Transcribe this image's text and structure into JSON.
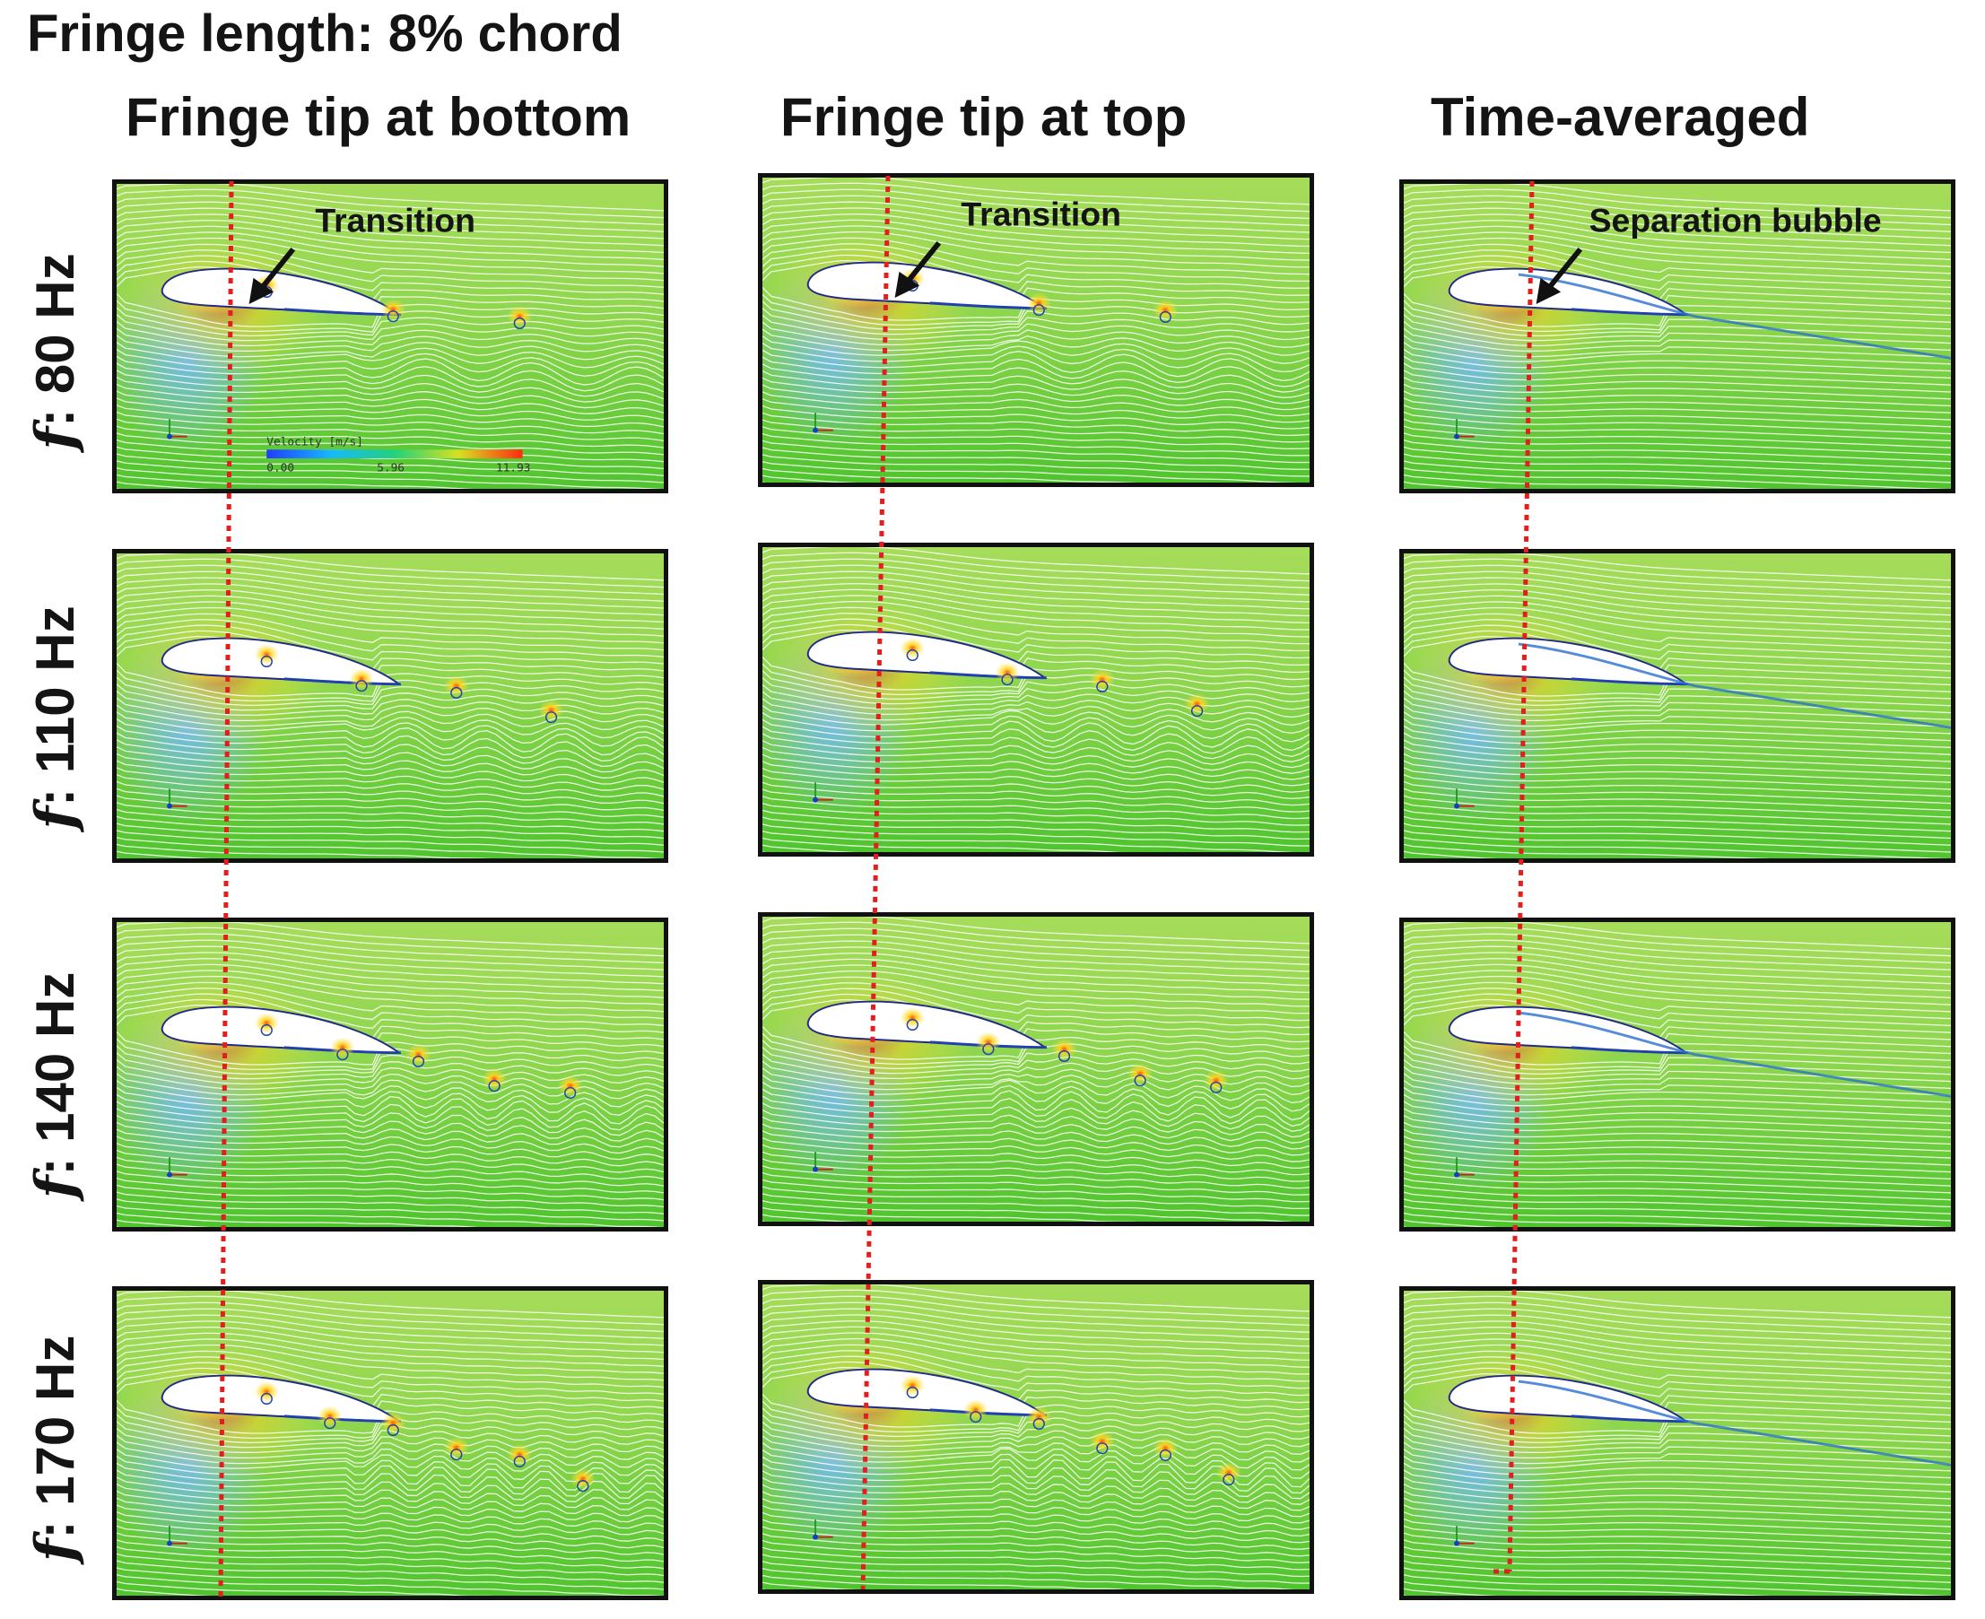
{
  "title": "Fringe length: 8% chord",
  "columns": [
    {
      "label": "Fringe tip at bottom"
    },
    {
      "label": "Fringe tip at top"
    },
    {
      "label": "Time-averaged"
    }
  ],
  "rows": [
    {
      "prefix": "f",
      "value": ": 80 Hz"
    },
    {
      "prefix": "f",
      "value": ": 110 Hz"
    },
    {
      "prefix": "f",
      "value": ": 140 Hz"
    },
    {
      "prefix": "f",
      "value": ": 170 Hz"
    }
  ],
  "annotations": {
    "transition": "Transition",
    "separation_bubble": "Separation bubble"
  },
  "colorbar": {
    "title": "Velocity [m/s]",
    "min": "0.00",
    "mid": "5.96",
    "max": "11.93"
  },
  "colors": {
    "field": "#6fcf3f",
    "streamline": "#ffffff",
    "marker_line": "#e01f1f",
    "high_speed": "#ff3a10",
    "low_speed": "#3d8bff"
  }
}
